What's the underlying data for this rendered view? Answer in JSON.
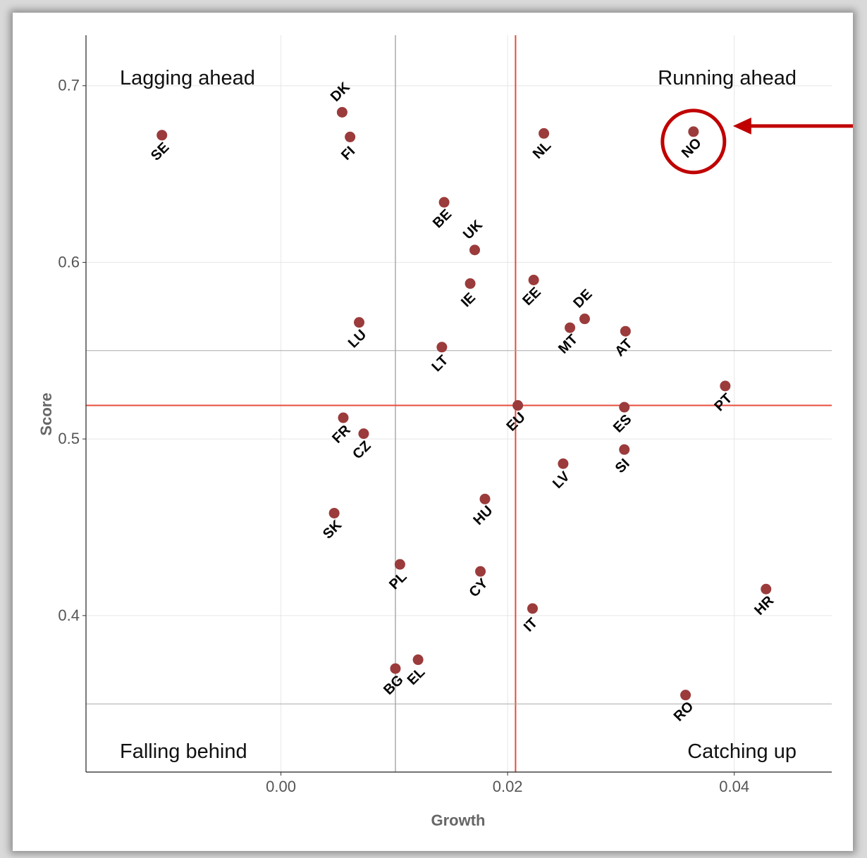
{
  "chart_data": {
    "type": "scatter",
    "title": "",
    "xlabel": "Growth",
    "ylabel": "Score",
    "xlim": [
      -0.0172,
      0.0486
    ],
    "ylim": [
      0.3114,
      0.7286
    ],
    "xticks": [
      0.0,
      0.02,
      0.04
    ],
    "xtick_labels": [
      "0.00",
      "0.02",
      "0.04"
    ],
    "yticks": [
      0.4,
      0.5,
      0.6,
      0.7
    ],
    "ytick_labels": [
      "0.4",
      "0.5",
      "0.6",
      "0.7"
    ],
    "grid": true,
    "reference_lines": {
      "vertical": [
        {
          "x": 0.0101,
          "color": "#aaaaaa"
        },
        {
          "x": 0.0207,
          "color": "#e74c3c"
        }
      ],
      "horizontal": [
        {
          "y": 0.55,
          "color": "#aaaaaa"
        },
        {
          "y": 0.35,
          "color": "#aaaaaa"
        },
        {
          "y": 0.519,
          "color": "#e74c3c"
        }
      ]
    },
    "quadrant_labels": {
      "top_left": "Lagging ahead",
      "top_right": "Running ahead",
      "bottom_left": "Falling behind",
      "bottom_right": "Catching up"
    },
    "point_color": "#9b3b3b",
    "highlight": {
      "label": "NO",
      "color": "#c00000"
    },
    "points": [
      {
        "label": "SE",
        "x": -0.0105,
        "y": 0.672
      },
      {
        "label": "DK",
        "x": 0.0054,
        "y": 0.685
      },
      {
        "label": "FI",
        "x": 0.0061,
        "y": 0.671
      },
      {
        "label": "NL",
        "x": 0.0232,
        "y": 0.673
      },
      {
        "label": "NO",
        "x": 0.0364,
        "y": 0.674
      },
      {
        "label": "BE",
        "x": 0.0144,
        "y": 0.634
      },
      {
        "label": "UK",
        "x": 0.0171,
        "y": 0.607
      },
      {
        "label": "IE",
        "x": 0.0167,
        "y": 0.588
      },
      {
        "label": "EE",
        "x": 0.0223,
        "y": 0.59
      },
      {
        "label": "DE",
        "x": 0.0268,
        "y": 0.568
      },
      {
        "label": "MT",
        "x": 0.0255,
        "y": 0.563
      },
      {
        "label": "AT",
        "x": 0.0304,
        "y": 0.561
      },
      {
        "label": "LU",
        "x": 0.0069,
        "y": 0.566
      },
      {
        "label": "LT",
        "x": 0.0142,
        "y": 0.552
      },
      {
        "label": "PT",
        "x": 0.0392,
        "y": 0.53
      },
      {
        "label": "EU",
        "x": 0.0209,
        "y": 0.519
      },
      {
        "label": "ES",
        "x": 0.0303,
        "y": 0.518
      },
      {
        "label": "FR",
        "x": 0.0055,
        "y": 0.512
      },
      {
        "label": "CZ",
        "x": 0.0073,
        "y": 0.503
      },
      {
        "label": "SI",
        "x": 0.0303,
        "y": 0.494
      },
      {
        "label": "LV",
        "x": 0.0249,
        "y": 0.486
      },
      {
        "label": "HU",
        "x": 0.018,
        "y": 0.466
      },
      {
        "label": "SK",
        "x": 0.0047,
        "y": 0.458
      },
      {
        "label": "PL",
        "x": 0.0105,
        "y": 0.429
      },
      {
        "label": "CY",
        "x": 0.0176,
        "y": 0.425
      },
      {
        "label": "HR",
        "x": 0.0428,
        "y": 0.415
      },
      {
        "label": "IT",
        "x": 0.0222,
        "y": 0.404
      },
      {
        "label": "EL",
        "x": 0.0121,
        "y": 0.375
      },
      {
        "label": "BG",
        "x": 0.0101,
        "y": 0.37
      },
      {
        "label": "RO",
        "x": 0.0357,
        "y": 0.355
      }
    ]
  }
}
